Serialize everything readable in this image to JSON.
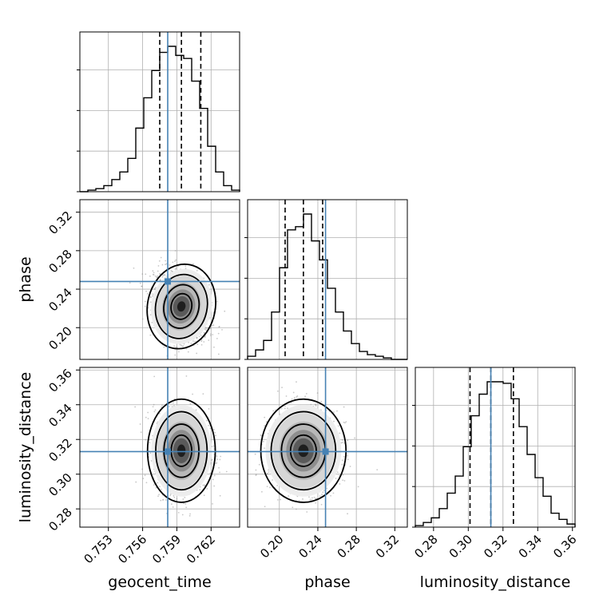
{
  "chart_data": {
    "type": "corner",
    "parameters": [
      {
        "name": "geocent_time",
        "label": "geocent_time",
        "range": [
          0.7505,
          0.7645
        ],
        "ticks": [
          0.753,
          0.756,
          0.759,
          0.762
        ],
        "tick_labels": [
          "0.753",
          "0.756",
          "0.759",
          "0.762"
        ],
        "truth": 0.7582,
        "quantiles": [
          0.7575,
          0.7594,
          0.7611
        ],
        "mean": 0.7594,
        "std": 0.0012
      },
      {
        "name": "phase",
        "label": "phase",
        "range": [
          0.167,
          0.333
        ],
        "ticks": [
          0.2,
          0.24,
          0.28,
          0.32
        ],
        "tick_labels": [
          "0.20",
          "0.24",
          "0.28",
          "0.32"
        ],
        "truth": 0.248,
        "quantiles": [
          0.206,
          0.225,
          0.245
        ],
        "mean": 0.225,
        "std": 0.018
      },
      {
        "name": "luminosity_distance",
        "label": "luminosity_distance",
        "range": [
          0.2695,
          0.3615
        ],
        "ticks": [
          0.28,
          0.3,
          0.32,
          0.34,
          0.36
        ],
        "tick_labels": [
          "0.28",
          "0.30",
          "0.32",
          "0.34",
          "0.36"
        ],
        "truth": 0.313,
        "quantiles": [
          0.301,
          0.313,
          0.326
        ],
        "mean": 0.313,
        "std": 0.012
      }
    ],
    "histograms": {
      "geocent_time": [
        0,
        1,
        2,
        4,
        8,
        13,
        22,
        42,
        62,
        80,
        92,
        96,
        90,
        88,
        73,
        55,
        30,
        13,
        4,
        1
      ],
      "phase": [
        2,
        6,
        12,
        30,
        58,
        82,
        84,
        92,
        75,
        63,
        45,
        30,
        18,
        10,
        5,
        3,
        2,
        1,
        0,
        0
      ],
      "luminosity_distance": [
        1,
        3,
        6,
        12,
        22,
        33,
        52,
        72,
        86,
        94,
        94,
        93,
        83,
        65,
        47,
        32,
        20,
        9,
        5,
        2
      ]
    },
    "pairs": [
      {
        "x": "geocent_time",
        "y": "phase",
        "center": [
          0.7594,
          0.222
        ],
        "cov": [
          [
            1.44e-06,
            -7e-06
          ],
          [
            -7e-06,
            0.00032
          ]
        ],
        "levels": [
          1,
          1.7,
          2.5,
          3.3
        ]
      },
      {
        "x": "geocent_time",
        "y": "luminosity_distance",
        "center": [
          0.7594,
          0.3135
        ],
        "cov": [
          [
            1.44e-06,
            0
          ],
          [
            0,
            0.000144
          ]
        ],
        "levels": [
          1,
          1.7,
          2.5,
          3.3
        ]
      },
      {
        "x": "phase",
        "y": "luminosity_distance",
        "center": [
          0.225,
          0.3135
        ],
        "cov": [
          [
            0.00032,
            0
          ],
          [
            0,
            0.000144
          ]
        ],
        "levels": [
          1,
          1.7,
          2.5,
          3.3
        ]
      }
    ],
    "truth_color": "#4682b4",
    "grid": true
  }
}
